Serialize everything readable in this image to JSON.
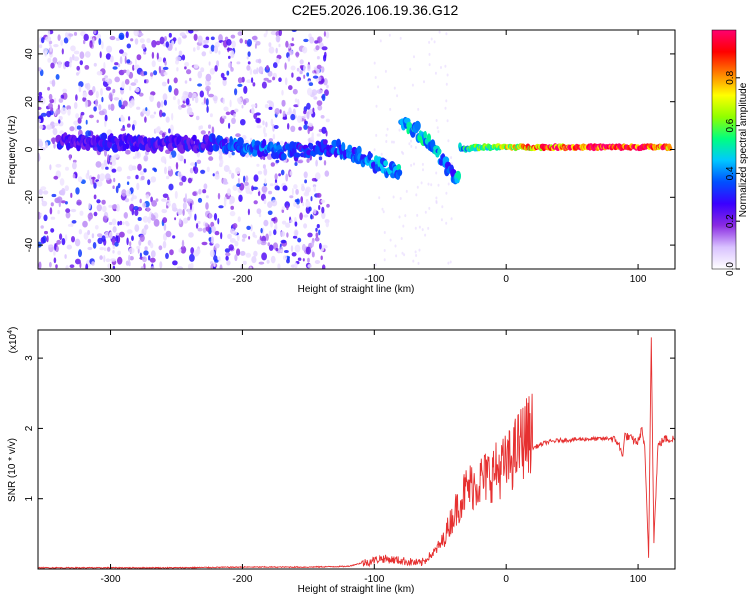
{
  "title": "C2E5.2026.106.19.36.G12",
  "chart_data": [
    {
      "type": "heatmap",
      "xlabel": "Height of straight line (km)",
      "ylabel": "Frequency (Hz)",
      "xlim": [
        -355,
        128
      ],
      "ylim": [
        -50,
        50
      ],
      "xticks": [
        -300,
        -200,
        -100,
        0,
        100
      ],
      "yticks": [
        -40,
        -20,
        0,
        20,
        40
      ],
      "colorbar": {
        "label": "Normalized spectral amplitude",
        "range": [
          0,
          1
        ],
        "ticks": [
          "0.0",
          "0.2",
          "0.4",
          "0.6",
          "0.8"
        ],
        "colors": [
          "#ffffff",
          "#d9c2ff",
          "#8a2be2",
          "#3a00ff",
          "#0050ff",
          "#00c8ff",
          "#00ff80",
          "#90ff00",
          "#ffff00",
          "#ff8000",
          "#ff0000",
          "#ff0070"
        ]
      },
      "signal_track": [
        {
          "x": -340,
          "f": 3,
          "amp": 0.25
        },
        {
          "x": -300,
          "f": 3,
          "amp": 0.25
        },
        {
          "x": -250,
          "f": 2,
          "amp": 0.25
        },
        {
          "x": -220,
          "f": 3,
          "amp": 0.3
        },
        {
          "x": -200,
          "f": 1,
          "amp": 0.35
        },
        {
          "x": -180,
          "f": 0,
          "amp": 0.35
        },
        {
          "x": -160,
          "f": -1,
          "amp": 0.3
        },
        {
          "x": -140,
          "f": 1,
          "amp": 0.3
        },
        {
          "x": -125,
          "f": 0,
          "amp": 0.35
        },
        {
          "x": -110,
          "f": -3,
          "amp": 0.35
        },
        {
          "x": -95,
          "f": -7,
          "amp": 0.4
        },
        {
          "x": -85,
          "f": -9,
          "amp": 0.4
        },
        {
          "x": -80,
          "f": 12,
          "amp": 0.45
        },
        {
          "x": -70,
          "f": 9,
          "amp": 0.45
        },
        {
          "x": -60,
          "f": 4,
          "amp": 0.45
        },
        {
          "x": -50,
          "f": -3,
          "amp": 0.4
        },
        {
          "x": -40,
          "f": -12,
          "amp": 0.35
        },
        {
          "x": -35,
          "f": 0,
          "amp": 0.45
        },
        {
          "x": -20,
          "f": 1,
          "amp": 0.55
        },
        {
          "x": 0,
          "f": 1,
          "amp": 0.65
        },
        {
          "x": 30,
          "f": 1,
          "amp": 0.85
        },
        {
          "x": 60,
          "f": 1,
          "amp": 0.95
        },
        {
          "x": 90,
          "f": 1,
          "amp": 0.95
        },
        {
          "x": 110,
          "f": 1,
          "amp": 0.9
        },
        {
          "x": 125,
          "f": 1,
          "amp": 0.85
        }
      ]
    },
    {
      "type": "line",
      "xlabel": "Height of straight line (km)",
      "ylabel": "SNR (10 * v/v)",
      "scale_note": "(x10",
      "scale_exp": "4",
      "xlim": [
        -355,
        128
      ],
      "ylim": [
        0,
        3.4
      ],
      "xticks": [
        -300,
        -200,
        -100,
        0,
        100
      ],
      "yticks": [
        1,
        2,
        3
      ],
      "series": [
        {
          "color": "#e63030",
          "x": [
            -355,
            -300,
            -250,
            -200,
            -150,
            -120,
            -105,
            -95,
            -80,
            -65,
            -55,
            -48,
            -42,
            -35,
            -30,
            -25,
            -20,
            -15,
            -10,
            -5,
            0,
            5,
            10,
            15,
            20,
            25,
            30,
            40,
            50,
            60,
            70,
            80,
            85,
            88,
            90,
            95,
            100,
            103,
            105,
            108,
            110,
            112,
            115,
            120,
            128
          ],
          "y": [
            0.01,
            0.01,
            0.01,
            0.02,
            0.02,
            0.03,
            0.1,
            0.15,
            0.12,
            0.08,
            0.2,
            0.35,
            0.6,
            0.85,
            1.0,
            1.05,
            1.1,
            1.15,
            1.2,
            1.25,
            1.3,
            1.4,
            1.55,
            1.65,
            1.72,
            1.76,
            1.8,
            1.83,
            1.84,
            1.85,
            1.85,
            1.86,
            1.8,
            1.6,
            1.9,
            1.85,
            1.8,
            2.0,
            1.7,
            0.2,
            3.3,
            0.4,
            1.75,
            1.85,
            1.85
          ]
        }
      ]
    }
  ]
}
